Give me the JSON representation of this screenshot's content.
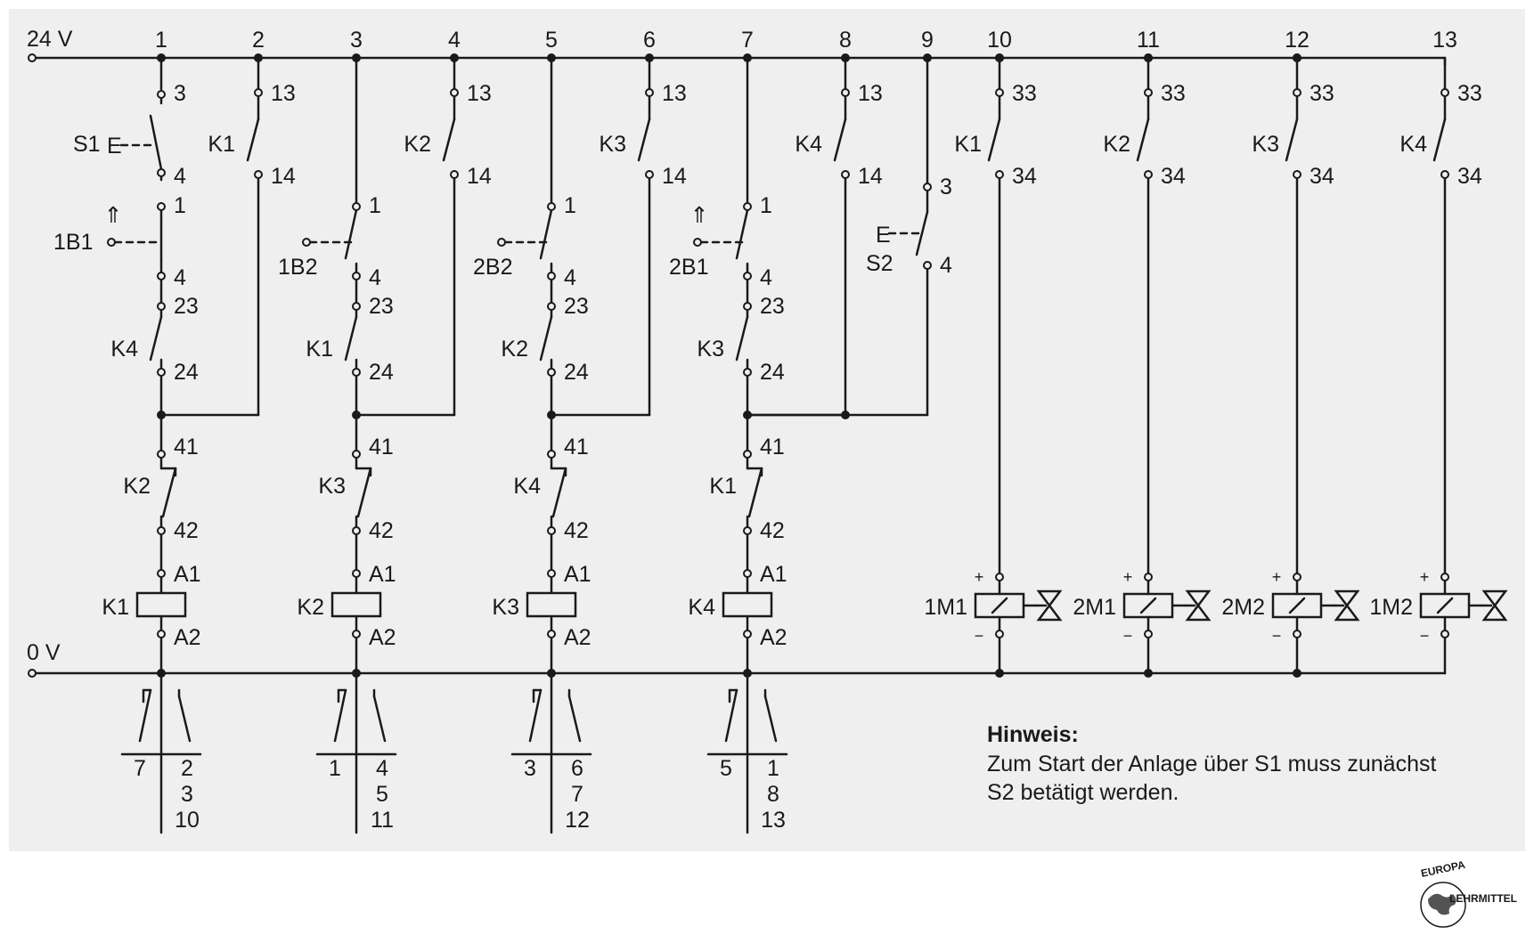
{
  "colors": {
    "panel": "#efefef",
    "line": "#1a1a1a",
    "page": "#ffffff"
  },
  "supply": {
    "top_label": "24 V",
    "bottom_label": "0 V"
  },
  "path_numbers": [
    "1",
    "2",
    "3",
    "4",
    "5",
    "6",
    "7",
    "8",
    "9",
    "10",
    "11",
    "12",
    "13"
  ],
  "start_switch": {
    "tag": "S1",
    "symbol": "E",
    "terminals": [
      "3",
      "4"
    ]
  },
  "stop_switch": {
    "tag": "S2",
    "symbol": "E",
    "terminals": [
      "3",
      "4"
    ]
  },
  "relay_paths": [
    {
      "sensor": "1B1",
      "hold_contact": "K1",
      "hold_terminals": [
        "13",
        "14"
      ],
      "no_contact": "K4",
      "no_terminals": [
        "23",
        "24"
      ],
      "nc_contact": "K2",
      "nc_terminals": [
        "41",
        "42"
      ],
      "coil": "K1",
      "coil_terminals": [
        "A1",
        "A2"
      ],
      "contact_table": {
        "nc": [
          "7"
        ],
        "no": [
          "2",
          "3",
          "10"
        ]
      }
    },
    {
      "sensor": "1B2",
      "hold_contact": "K2",
      "hold_terminals": [
        "13",
        "14"
      ],
      "no_contact": "K1",
      "no_terminals": [
        "23",
        "24"
      ],
      "nc_contact": "K3",
      "nc_terminals": [
        "41",
        "42"
      ],
      "coil": "K2",
      "coil_terminals": [
        "A1",
        "A2"
      ],
      "contact_table": {
        "nc": [
          "1"
        ],
        "no": [
          "4",
          "5",
          "11"
        ]
      }
    },
    {
      "sensor": "2B2",
      "hold_contact": "K3",
      "hold_terminals": [
        "13",
        "14"
      ],
      "no_contact": "K2",
      "no_terminals": [
        "23",
        "24"
      ],
      "nc_contact": "K4",
      "nc_terminals": [
        "41",
        "42"
      ],
      "coil": "K3",
      "coil_terminals": [
        "A1",
        "A2"
      ],
      "contact_table": {
        "nc": [
          "3"
        ],
        "no": [
          "6",
          "7",
          "12"
        ]
      }
    },
    {
      "sensor": "2B1",
      "hold_contact": "K4",
      "hold_terminals": [
        "13",
        "14"
      ],
      "no_contact": "K3",
      "no_terminals": [
        "23",
        "24"
      ],
      "nc_contact": "K1",
      "nc_terminals": [
        "41",
        "42"
      ],
      "coil": "K4",
      "coil_terminals": [
        "A1",
        "A2"
      ],
      "contact_table": {
        "nc": [
          "5"
        ],
        "no": [
          "1",
          "8",
          "13"
        ]
      }
    }
  ],
  "sensor_terminals": [
    "1",
    "4"
  ],
  "valve_paths": [
    {
      "contact": "K1",
      "terminals": [
        "33",
        "34"
      ],
      "solenoid": "1M1"
    },
    {
      "contact": "K2",
      "terminals": [
        "33",
        "34"
      ],
      "solenoid": "2M1"
    },
    {
      "contact": "K3",
      "terminals": [
        "33",
        "34"
      ],
      "solenoid": "2M2"
    },
    {
      "contact": "K4",
      "terminals": [
        "33",
        "34"
      ],
      "solenoid": "1M2"
    }
  ],
  "solenoid_polarity": {
    "plus": "+",
    "minus": "−"
  },
  "note": {
    "heading": "Hinweis:",
    "line1": "Zum Start der Anlage über S1 muss zunächst",
    "line2": "S2 betätigt werden."
  },
  "logo": {
    "top": "EUROPA",
    "side": "LEHRMITTEL"
  }
}
